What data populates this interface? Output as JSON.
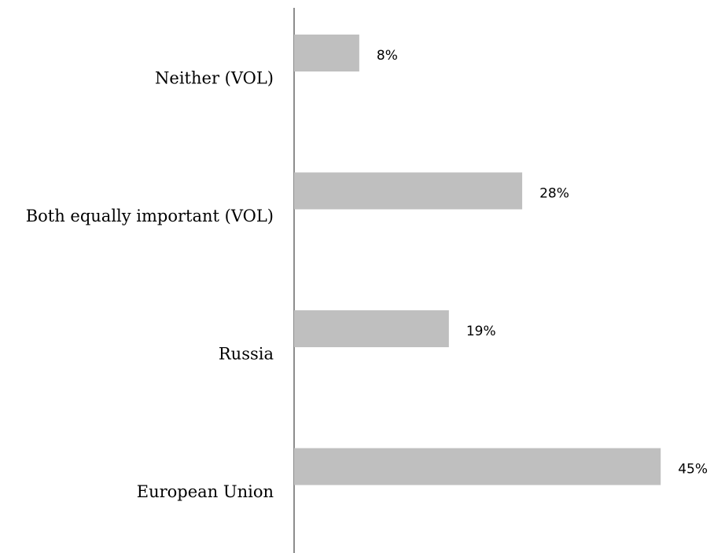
{
  "chart_data": {
    "type": "bar",
    "orientation": "horizontal",
    "categories": [
      "Neither (VOL)",
      "Both equally important (VOL)",
      "Russia",
      "European Union"
    ],
    "values": [
      8,
      28,
      19,
      45
    ],
    "value_labels": [
      "8%",
      "28%",
      "19%",
      "45%"
    ],
    "color": "#bfbfbf"
  }
}
